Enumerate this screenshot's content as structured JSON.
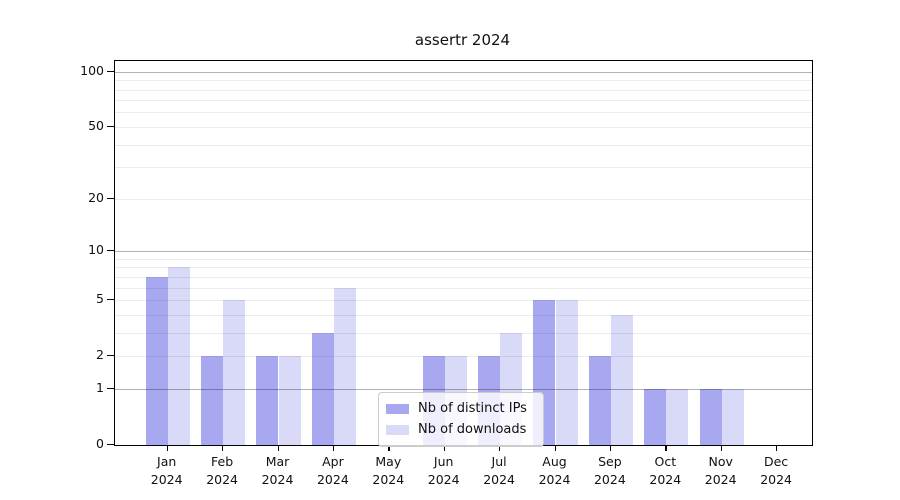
{
  "chart_data": {
    "type": "bar",
    "title": "assertr 2024",
    "categories": [
      "Jan",
      "Feb",
      "Mar",
      "Apr",
      "May",
      "Jun",
      "Jul",
      "Aug",
      "Sep",
      "Oct",
      "Nov",
      "Dec"
    ],
    "x_tick_labels": [
      [
        "Jan",
        "2024"
      ],
      [
        "Feb",
        "2024"
      ],
      [
        "Mar",
        "2024"
      ],
      [
        "Apr",
        "2024"
      ],
      [
        "May",
        "2024"
      ],
      [
        "Jun",
        "2024"
      ],
      [
        "Jul",
        "2024"
      ],
      [
        "Aug",
        "2024"
      ],
      [
        "Sep",
        "2024"
      ],
      [
        "Oct",
        "2024"
      ],
      [
        "Nov",
        "2024"
      ],
      [
        "Dec",
        "2024"
      ]
    ],
    "series": [
      {
        "name": "Nb of distinct IPs",
        "color": "#a8a8f0",
        "values": [
          7,
          2,
          2,
          3,
          0,
          2,
          2,
          5,
          2,
          1,
          1,
          0
        ]
      },
      {
        "name": "Nb of downloads",
        "color": "#d9d9f8",
        "values": [
          8,
          5,
          2,
          6,
          0,
          2,
          3,
          5,
          4,
          1,
          1,
          0
        ]
      }
    ],
    "xlabel": "",
    "ylabel": "",
    "y_scale": "log1p",
    "ylim": [
      0,
      115
    ],
    "y_ticks": [
      0,
      1,
      2,
      5,
      10,
      20,
      50,
      100
    ],
    "gridlines_light": [
      2,
      3,
      4,
      5,
      6,
      7,
      8,
      9,
      20,
      30,
      40,
      50,
      60,
      70,
      80,
      90
    ],
    "gridlines_dark": [
      1,
      10,
      100
    ],
    "grid": true,
    "legend_position": "bottom-center"
  },
  "colors": {
    "background": "#ffffff",
    "bar_distinct_ips": "#a8a8f0",
    "bar_downloads": "#d9d9f8",
    "axis": "#000000",
    "gridline_minor": "#e8e8e8",
    "gridline_major": "#b3b3b3",
    "legend_border": "#cccccc",
    "legend_background": "rgba(255,255,255,0.8)"
  }
}
